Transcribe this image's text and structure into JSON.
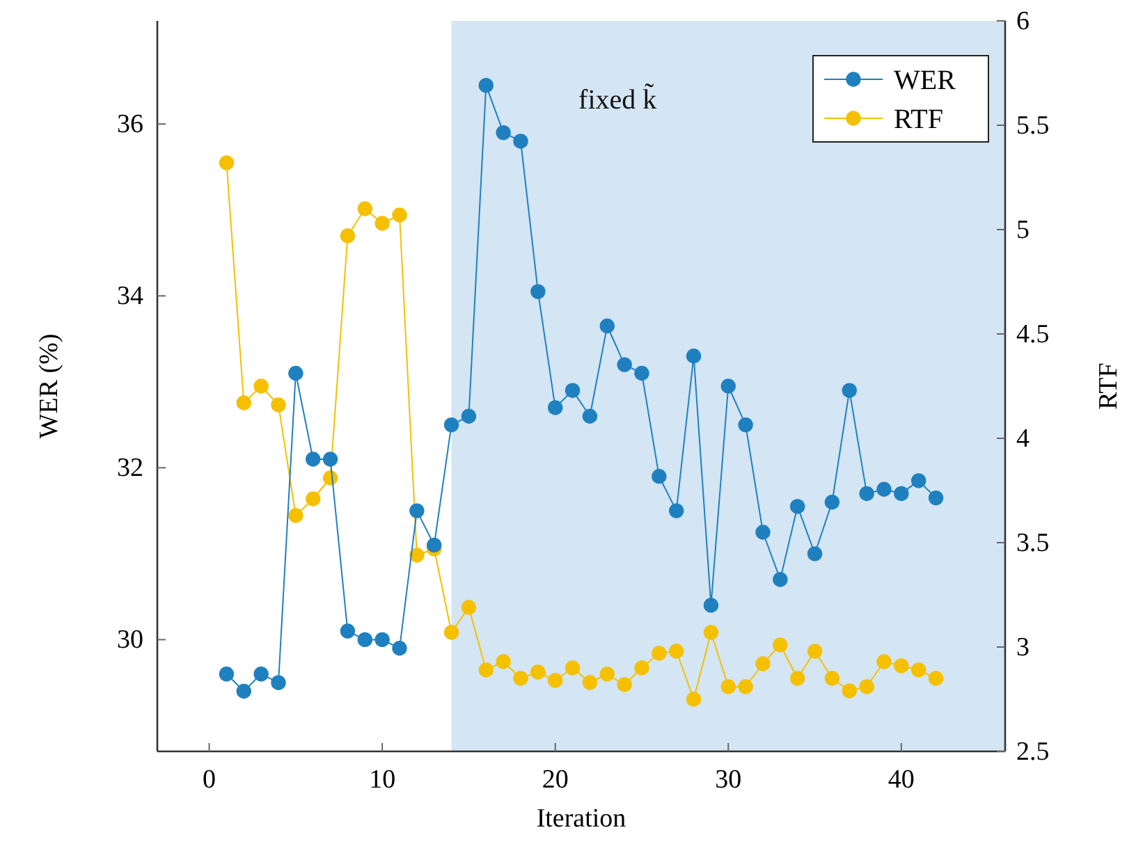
{
  "chart_data": {
    "type": "line",
    "xlabel": "Iteration",
    "ylabel": "WER (%)",
    "y2label": "RTF",
    "x": [
      1,
      2,
      3,
      4,
      5,
      6,
      7,
      8,
      9,
      10,
      11,
      12,
      13,
      14,
      15,
      16,
      17,
      18,
      19,
      20,
      21,
      22,
      23,
      24,
      25,
      26,
      27,
      28,
      29,
      30,
      31,
      32,
      33,
      34,
      35,
      36,
      37,
      38,
      39,
      40,
      41,
      42
    ],
    "series": [
      {
        "name": "WER",
        "color": "#1f80c0",
        "values": [
          29.6,
          29.4,
          29.6,
          29.5,
          33.1,
          32.1,
          32.1,
          30.1,
          30.0,
          30.0,
          29.9,
          31.5,
          31.1,
          32.5,
          32.6,
          36.45,
          35.9,
          35.8,
          34.05,
          32.7,
          32.9,
          32.6,
          33.65,
          33.2,
          33.1,
          31.9,
          31.5,
          33.3,
          30.4,
          32.95,
          32.5,
          31.25,
          30.7,
          31.55,
          31.0,
          31.6,
          32.9,
          31.7,
          31.75,
          31.7,
          31.85,
          31.65
        ]
      },
      {
        "name": "RTF",
        "color": "#f5c000",
        "axis": "y2",
        "values": [
          5.32,
          4.17,
          4.25,
          4.16,
          3.63,
          3.71,
          3.81,
          4.97,
          5.1,
          5.03,
          5.07,
          3.44,
          3.47,
          3.07,
          3.19,
          2.89,
          2.93,
          2.85,
          2.88,
          2.84,
          2.9,
          2.83,
          2.87,
          2.82,
          2.9,
          2.97,
          2.98,
          2.75,
          3.07,
          2.81,
          2.81,
          2.92,
          3.01,
          2.85,
          2.98,
          2.85,
          2.79,
          2.81,
          2.93,
          2.91,
          2.89,
          2.85
        ]
      }
    ],
    "xlim": [
      -3,
      46
    ],
    "xticks": [
      0,
      10,
      20,
      30,
      40
    ],
    "ylim": [
      28.7,
      37.2
    ],
    "yticks": [
      30,
      32,
      34,
      36
    ],
    "y2lim": [
      2.5,
      6
    ],
    "y2ticks": [
      2.5,
      3,
      3.5,
      4,
      4.5,
      5,
      5.5,
      6
    ],
    "bands": [
      {
        "axis": "x",
        "from": 14,
        "to": 46,
        "label": "fixed k̃",
        "color": "#d4e5f3"
      }
    ],
    "marker": "circle",
    "line_style": "solid",
    "legend": "top right",
    "grid": false
  }
}
